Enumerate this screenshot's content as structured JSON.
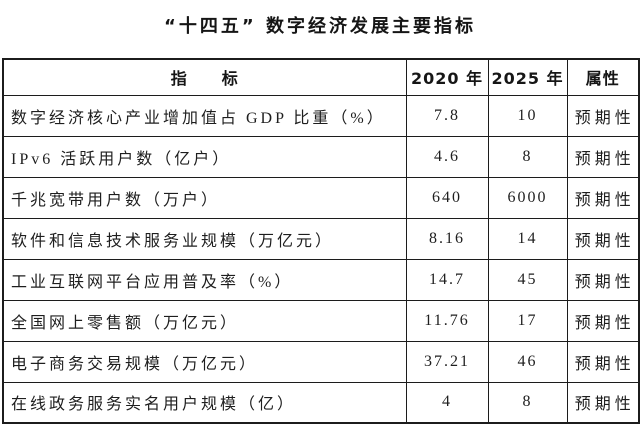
{
  "page": {
    "background": "#ffffff",
    "text_color": "#1a1a1a",
    "border_color": "#1c1c1c"
  },
  "title": "“十四五” 数字经济发展主要指标",
  "table": {
    "headers": [
      "指　　标",
      "2020 年",
      "2025 年",
      "属性"
    ],
    "rows": [
      {
        "indicator": "数字经济核心产业增加值占 GDP 比重（%）",
        "y2020": "7.8",
        "y2025": "10",
        "attribute": "预期性"
      },
      {
        "indicator": "IPv6 活跃用户数（亿户）",
        "y2020": "4.6",
        "y2025": "8",
        "attribute": "预期性"
      },
      {
        "indicator": "千兆宽带用户数（万户）",
        "y2020": "640",
        "y2025": "6000",
        "attribute": "预期性"
      },
      {
        "indicator": "软件和信息技术服务业规模（万亿元）",
        "y2020": "8.16",
        "y2025": "14",
        "attribute": "预期性"
      },
      {
        "indicator": "工业互联网平台应用普及率（%）",
        "y2020": "14.7",
        "y2025": "45",
        "attribute": "预期性"
      },
      {
        "indicator": "全国网上零售额（万亿元）",
        "y2020": "11.76",
        "y2025": "17",
        "attribute": "预期性"
      },
      {
        "indicator": "电子商务交易规模（万亿元）",
        "y2020": "37.21",
        "y2025": "46",
        "attribute": "预期性"
      },
      {
        "indicator": "在线政务服务实名用户规模（亿）",
        "y2020": "4",
        "y2025": "8",
        "attribute": "预期性"
      }
    ]
  }
}
